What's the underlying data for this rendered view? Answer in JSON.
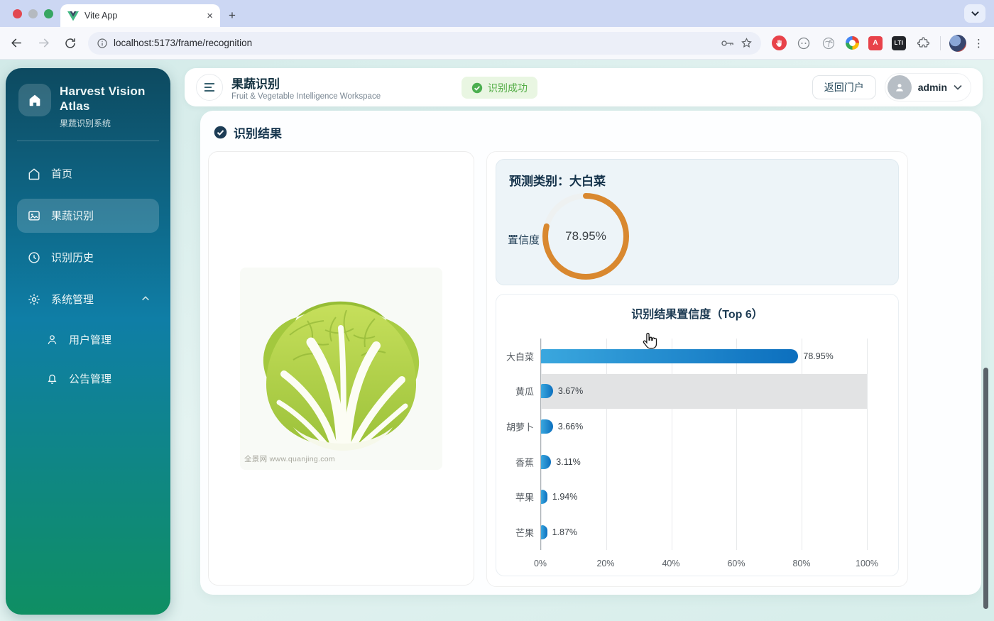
{
  "browser": {
    "tab_title": "Vite App",
    "url": "localhost:5173/frame/recognition",
    "close_glyph": "×",
    "newtab_glyph": "+",
    "kebab_glyph": "⋮",
    "translate_glyph": "A",
    "dark_ext_glyph": "LTI"
  },
  "sidebar": {
    "app_name": "Harvest Vision Atlas",
    "app_subtitle": "果蔬识别系统",
    "items": [
      {
        "label": "首页"
      },
      {
        "label": "果蔬识别",
        "active": true
      },
      {
        "label": "识别历史"
      },
      {
        "label": "系统管理",
        "expanded": true
      }
    ],
    "sub_items": [
      {
        "label": "用户管理"
      },
      {
        "label": "公告管理"
      }
    ]
  },
  "header": {
    "title": "果蔬识别",
    "subtitle": "Fruit & Vegetable Intelligence Workspace",
    "status_badge": "识别成功",
    "portal_button": "返回门户",
    "username": "admin"
  },
  "main": {
    "section_title": "识别结果",
    "image_watermark": "全景网 www.quanjing.com",
    "prediction": {
      "title": "预测类别：大白菜",
      "confidence_label": "置信度",
      "confidence_text": "78.95%",
      "confidence_value": 78.95,
      "ring_color": "#d9882f",
      "ring_track_color": "#eef1f1"
    }
  },
  "chart_data": {
    "type": "bar",
    "orientation": "horizontal",
    "title": "识别结果置信度（Top 6）",
    "categories": [
      "大白菜",
      "黄瓜",
      "胡萝卜",
      "香蕉",
      "苹果",
      "芒果"
    ],
    "values": [
      78.95,
      3.67,
      3.66,
      3.11,
      1.94,
      1.87
    ],
    "value_labels": [
      "78.95%",
      "3.67%",
      "3.66%",
      "3.11%",
      "1.94%",
      "1.87%"
    ],
    "x_ticks": [
      "0%",
      "20%",
      "40%",
      "60%",
      "80%",
      "100%"
    ],
    "x_tick_values": [
      0,
      20,
      40,
      60,
      80,
      100
    ],
    "xlim": [
      0,
      100
    ],
    "grid": true,
    "legend": "none",
    "bar_color_start": "#3aa7de",
    "bar_color_end": "#0c6fbe",
    "highlighted_row_index": 1,
    "highlight_color": "#e2e3e4"
  }
}
